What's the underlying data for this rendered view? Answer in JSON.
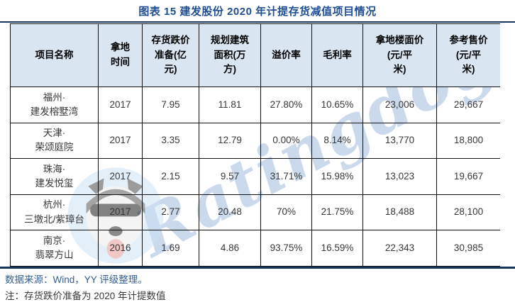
{
  "title": "图表 15 建发股份 2020 年计提存货减值项目情况",
  "watermark": {
    "text": "Ratingdog"
  },
  "table": {
    "columns": [
      {
        "label": "项目名称"
      },
      {
        "label": "拿地\n时间"
      },
      {
        "label": "存货跌价\n准备(亿\n元)"
      },
      {
        "label": "规划建筑\n面积(万\n方)"
      },
      {
        "label": "溢价率"
      },
      {
        "label": "毛利率"
      },
      {
        "label": "拿地楼面价\n(元/平\n米)"
      },
      {
        "label": "参考售价\n(元/平\n米)"
      }
    ],
    "rows": [
      [
        "福州·\n建发榕墅湾",
        "2017",
        "7.95",
        "11.81",
        "27.80%",
        "10.65%",
        "23,006",
        "29,667"
      ],
      [
        "天津·\n荣颂庭院",
        "2017",
        "3.35",
        "12.79",
        "0.00%",
        "8.14%",
        "13,770",
        "18,800"
      ],
      [
        "珠海·\n建发悦玺",
        "2017",
        "2.15",
        "9.57",
        "31.71%",
        "15.98%",
        "13,023",
        "19,667"
      ],
      [
        "杭州·\n三墩北/紫璋台",
        "2017",
        "2.77",
        "20.48",
        "70%",
        "21.75%",
        "18,488",
        "28,100"
      ],
      [
        "南京·\n翡翠方山",
        "2016",
        "1.69",
        "4.86",
        "93.75%",
        "16.59%",
        "22,343",
        "30,985"
      ]
    ]
  },
  "footer": {
    "source": "数据来源：Wind，YY 评级整理。",
    "note": "注：存货跌价准备为 2020 年计提数值"
  },
  "colors": {
    "title_color": "#1f4e92",
    "rule_color": "#17375e",
    "header_bg": "#d9e5f1",
    "source_color": "#365f91",
    "note_color": "#3a3a3a"
  }
}
